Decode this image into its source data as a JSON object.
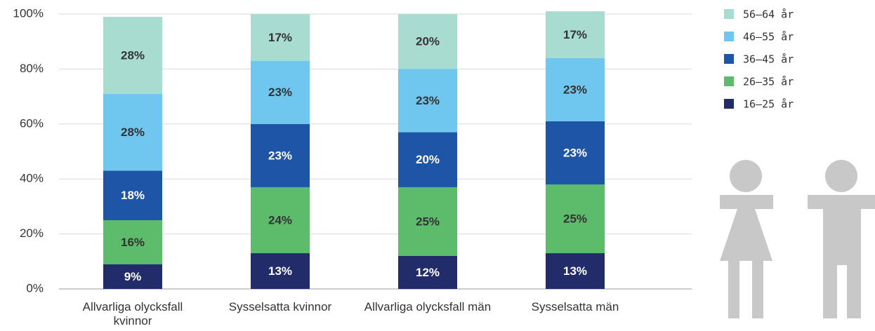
{
  "chart_data": {
    "type": "stacked_bar",
    "categories": [
      "Allvarliga olycksfall kvinnor",
      "Sysselsatta kvinnor",
      "Allvarliga olycksfall män",
      "Sysselsatta män"
    ],
    "series": [
      {
        "name": "16–25 år",
        "color": "#222c6a",
        "label_color": "#ffffff",
        "values": [
          9,
          13,
          12,
          13
        ],
        "value_labels": [
          "9%",
          "13%",
          "12%",
          "13%"
        ]
      },
      {
        "name": "26–35 år",
        "color": "#5cbc6b",
        "label_color": "#333333",
        "values": [
          16,
          24,
          25,
          25
        ],
        "value_labels": [
          "16%",
          "24%",
          "25%",
          "25%"
        ]
      },
      {
        "name": "36–45 år",
        "color": "#1f55a6",
        "label_color": "#ffffff",
        "values": [
          18,
          23,
          20,
          23
        ],
        "value_labels": [
          "18%",
          "23%",
          "20%",
          "23%"
        ]
      },
      {
        "name": "46–55 år",
        "color": "#6fc6ef",
        "label_color": "#333333",
        "values": [
          28,
          23,
          23,
          23
        ],
        "value_labels": [
          "28%",
          "23%",
          "23%",
          "23%"
        ]
      },
      {
        "name": "56–64 år",
        "color": "#a8dcd1",
        "label_color": "#333333",
        "values": [
          28,
          17,
          20,
          17
        ],
        "value_labels": [
          "28%",
          "17%",
          "20%",
          "17%"
        ]
      }
    ],
    "ylim": [
      0,
      100
    ],
    "yticks": [
      {
        "value": 0,
        "label": "0%"
      },
      {
        "value": 20,
        "label": "20%"
      },
      {
        "value": 40,
        "label": "40%"
      },
      {
        "value": 60,
        "label": "60%"
      },
      {
        "value": 80,
        "label": "80%"
      },
      {
        "value": 100,
        "label": "100%"
      }
    ],
    "grid": true,
    "legend": "top-right"
  }
}
